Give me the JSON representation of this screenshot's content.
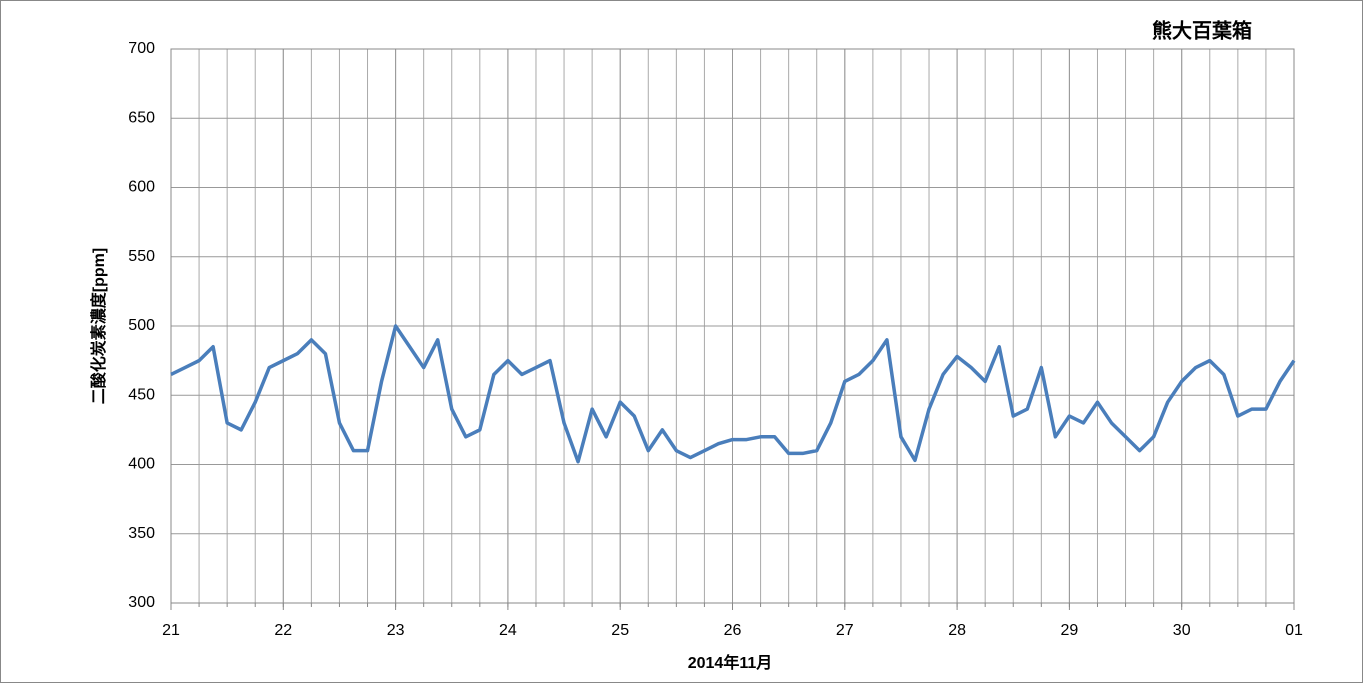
{
  "chart_data": {
    "type": "line",
    "title": "熊大百葉箱",
    "ylabel": "二酸化炭素濃度[ppm]",
    "xlabel": "2014年11月",
    "x": [
      21,
      21.125,
      21.25,
      21.375,
      21.5,
      21.625,
      21.75,
      21.875,
      22,
      22.125,
      22.25,
      22.375,
      22.5,
      22.625,
      22.75,
      22.875,
      23,
      23.125,
      23.25,
      23.375,
      23.5,
      23.625,
      23.75,
      23.875,
      24,
      24.125,
      24.25,
      24.375,
      24.5,
      24.625,
      24.75,
      24.875,
      25,
      25.125,
      25.25,
      25.375,
      25.5,
      25.625,
      25.75,
      25.875,
      26,
      26.125,
      26.25,
      26.375,
      26.5,
      26.625,
      26.75,
      26.875,
      27,
      27.125,
      27.25,
      27.375,
      27.5,
      27.625,
      27.75,
      27.875,
      28,
      28.125,
      28.25,
      28.375,
      28.5,
      28.625,
      28.75,
      28.875,
      29,
      29.125,
      29.25,
      29.375,
      29.5,
      29.625,
      29.75,
      29.875,
      30,
      30.125,
      30.25,
      30.375,
      30.5,
      30.625,
      30.75,
      30.875,
      31
    ],
    "series": [
      {
        "color": "#4a7ebb",
        "values": [
          465,
          470,
          475,
          485,
          430,
          425,
          445,
          470,
          475,
          480,
          490,
          480,
          430,
          410,
          410,
          460,
          500,
          485,
          470,
          490,
          440,
          420,
          425,
          465,
          475,
          465,
          470,
          475,
          430,
          402,
          440,
          420,
          445,
          435,
          410,
          425,
          410,
          405,
          410,
          415,
          418,
          418,
          420,
          420,
          408,
          408,
          410,
          430,
          460,
          465,
          475,
          490,
          420,
          403,
          440,
          465,
          478,
          470,
          460,
          485,
          435,
          440,
          470,
          420,
          435,
          430,
          445,
          430,
          420,
          410,
          420,
          445,
          460,
          470,
          475,
          465,
          435,
          440,
          440,
          460,
          475
        ]
      }
    ],
    "xlim": [
      21,
      31
    ],
    "xticks": [
      21,
      22,
      23,
      24,
      25,
      26,
      27,
      28,
      29,
      30,
      {
        "value": 31,
        "label": "01"
      }
    ],
    "xgrid_step": 0.25,
    "ylim": [
      300,
      700
    ],
    "yticks": [
      300,
      350,
      400,
      450,
      500,
      550,
      600,
      650,
      700
    ],
    "grid": true
  }
}
